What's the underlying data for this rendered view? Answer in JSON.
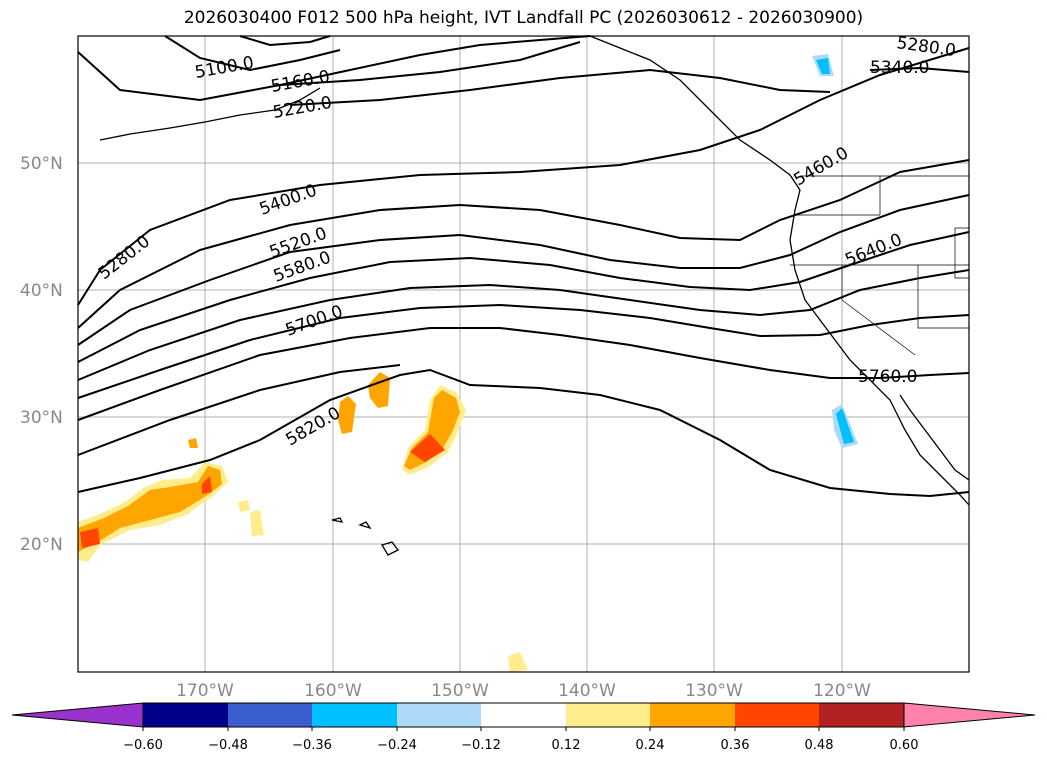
{
  "title": "2026030400 F012 500 hPa height, IVT Landfall PC (2026030612 - 2026030900)",
  "map": {
    "projection": "PlateCarree",
    "lon_range": [
      -180,
      -110
    ],
    "lat_range": [
      10,
      60
    ],
    "lat_ticks": [
      "20°N",
      "30°N",
      "40°N",
      "50°N"
    ],
    "lon_ticks": [
      "170°W",
      "160°W",
      "150°W",
      "140°W",
      "130°W",
      "120°W"
    ],
    "contour_labels": [
      "5100.0",
      "5160.0",
      "5220.0",
      "5280.0",
      "5340.0",
      "5400.0",
      "5520.0",
      "5580.0",
      "5700.0",
      "5820.0",
      "5460.0",
      "5640.0",
      "5760.0",
      "5280.0"
    ],
    "contour_color": "#000000",
    "land_color": "#000000"
  },
  "colorbar": {
    "colors": [
      "#9932cc",
      "#00008b",
      "#3a5fcd",
      "#00bfff",
      "#add8f7",
      "#ffffff",
      "#ffec8b",
      "#ffa500",
      "#ff4500",
      "#b22222",
      "#ff82ab"
    ],
    "ticks": [
      "−0.60",
      "−0.48",
      "−0.36",
      "−0.24",
      "−0.12",
      "0.12",
      "0.24",
      "0.36",
      "0.48",
      "0.60"
    ]
  }
}
